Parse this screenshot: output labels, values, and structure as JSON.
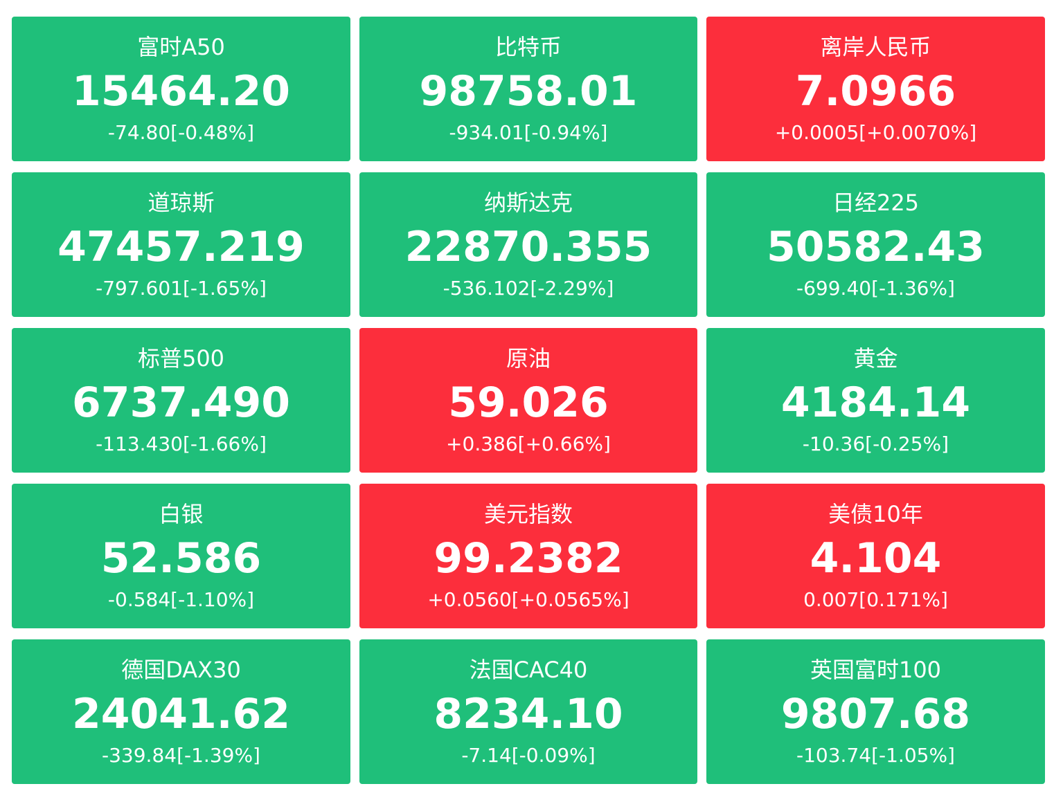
{
  "colors": {
    "down": "#1fbf7a",
    "up": "#fc2e3c",
    "text": "#ffffff"
  },
  "tiles": [
    {
      "name": "富时A50",
      "price": "15464.20",
      "change": "-74.80[-0.48%]",
      "trend": "down"
    },
    {
      "name": "比特币",
      "price": "98758.01",
      "change": "-934.01[-0.94%]",
      "trend": "down"
    },
    {
      "name": "离岸人民币",
      "price": "7.0966",
      "change": "+0.0005[+0.0070%]",
      "trend": "up"
    },
    {
      "name": "道琼斯",
      "price": "47457.219",
      "change": "-797.601[-1.65%]",
      "trend": "down"
    },
    {
      "name": "纳斯达克",
      "price": "22870.355",
      "change": "-536.102[-2.29%]",
      "trend": "down"
    },
    {
      "name": "日经225",
      "price": "50582.43",
      "change": "-699.40[-1.36%]",
      "trend": "down"
    },
    {
      "name": "标普500",
      "price": "6737.490",
      "change": "-113.430[-1.66%]",
      "trend": "down"
    },
    {
      "name": "原油",
      "price": "59.026",
      "change": "+0.386[+0.66%]",
      "trend": "up"
    },
    {
      "name": "黄金",
      "price": "4184.14",
      "change": "-10.36[-0.25%]",
      "trend": "down"
    },
    {
      "name": "白银",
      "price": "52.586",
      "change": "-0.584[-1.10%]",
      "trend": "down"
    },
    {
      "name": "美元指数",
      "price": "99.2382",
      "change": "+0.0560[+0.0565%]",
      "trend": "up"
    },
    {
      "name": "美债10年",
      "price": "4.104",
      "change": "0.007[0.171%]",
      "trend": "up"
    },
    {
      "name": "德国DAX30",
      "price": "24041.62",
      "change": "-339.84[-1.39%]",
      "trend": "down"
    },
    {
      "name": "法国CAC40",
      "price": "8234.10",
      "change": "-7.14[-0.09%]",
      "trend": "down"
    },
    {
      "name": "英国富时100",
      "price": "9807.68",
      "change": "-103.74[-1.05%]",
      "trend": "down"
    }
  ]
}
